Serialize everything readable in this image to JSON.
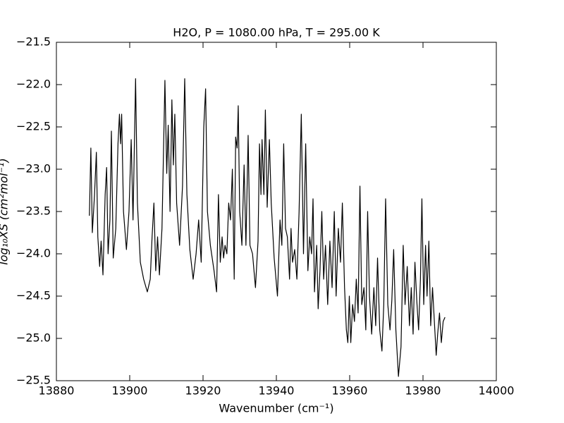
{
  "chart_data": {
    "type": "line",
    "title": "H2O, P = 1080.00 hPa, T = 295.00 K",
    "x_label": "Wavenumber (cm⁻¹)",
    "y_label": "log₁₀XS (cm²mol⁻¹)",
    "color": "#000000",
    "xlim": [
      13880,
      14000
    ],
    "xticks": [
      13880,
      13900,
      13920,
      13940,
      13960,
      13980,
      14000
    ],
    "ylim": [
      -25.5,
      -21.5
    ],
    "yticks": [
      {
        "value": -25.5,
        "label": "−25.5"
      },
      {
        "value": -25.0,
        "label": "−25.0"
      },
      {
        "value": -24.5,
        "label": "−24.5"
      },
      {
        "value": -24.0,
        "label": "−24.0"
      },
      {
        "value": -23.5,
        "label": "−23.5"
      },
      {
        "value": -23.0,
        "label": "−23.0"
      },
      {
        "value": -22.5,
        "label": "−22.5"
      },
      {
        "value": -22.0,
        "label": "−22.0"
      },
      {
        "value": -21.5,
        "label": "−21.5"
      }
    ],
    "x": [
      13889.0,
      13889.4,
      13889.8,
      13890.4,
      13890.9,
      13891.3,
      13891.8,
      13892.2,
      13892.7,
      13893.3,
      13893.7,
      13894.1,
      13894.6,
      13895.0,
      13895.5,
      13896.2,
      13896.8,
      13897.2,
      13897.5,
      13897.8,
      13898.3,
      13899.1,
      13899.8,
      13900.4,
      13900.9,
      13901.6,
      13902.1,
      13902.9,
      13903.8,
      13904.8,
      13905.6,
      13906.1,
      13906.6,
      13907.1,
      13907.6,
      13908.1,
      13908.8,
      13909.6,
      13910.1,
      13910.5,
      13911.0,
      13911.5,
      13911.9,
      13912.3,
      13912.8,
      13913.6,
      13914.4,
      13915.0,
      13915.6,
      13916.4,
      13917.3,
      13918.1,
      13918.8,
      13919.5,
      13920.2,
      13920.7,
      13921.2,
      13922.0,
      13923.0,
      13923.7,
      13924.2,
      13924.7,
      13925.2,
      13925.6,
      13926.0,
      13926.5,
      13927.0,
      13927.5,
      13928.0,
      13928.5,
      13928.9,
      13929.3,
      13929.6,
      13930.0,
      13930.6,
      13931.2,
      13931.7,
      13932.3,
      13932.8,
      13933.5,
      13934.3,
      13935.0,
      13935.4,
      13935.8,
      13936.1,
      13936.6,
      13937.0,
      13937.5,
      13938.1,
      13938.6,
      13939.4,
      13940.3,
      13941.0,
      13941.5,
      13942.0,
      13942.5,
      13943.0,
      13943.6,
      13944.0,
      13944.4,
      13945.0,
      13945.6,
      13946.2,
      13946.8,
      13947.4,
      13948.0,
      13948.6,
      13949.1,
      13949.6,
      13950.0,
      13950.4,
      13951.0,
      13951.4,
      13951.9,
      13952.4,
      13952.9,
      13953.4,
      13954.0,
      13954.6,
      13955.2,
      13955.8,
      13956.3,
      13956.9,
      13957.5,
      13958.0,
      13958.6,
      13959.1,
      13959.5,
      13959.9,
      13960.3,
      13960.8,
      13961.3,
      13961.8,
      13962.3,
      13962.8,
      13963.3,
      13963.9,
      13964.4,
      13964.9,
      13965.4,
      13966.0,
      13966.6,
      13967.1,
      13967.6,
      13968.2,
      13968.8,
      13969.3,
      13969.8,
      13970.4,
      13971.0,
      13971.5,
      13972.0,
      13972.6,
      13973.3,
      13974.0,
      13974.6,
      13975.1,
      13975.7,
      13976.3,
      13976.8,
      13977.3,
      13977.8,
      13978.3,
      13978.8,
      13979.3,
      13979.7,
      13980.2,
      13980.7,
      13981.1,
      13981.6,
      13982.1,
      13982.6,
      13983.1,
      13983.6,
      13984.0,
      13984.5,
      13985.0,
      13985.5,
      13986.0
    ],
    "values": [
      -23.55,
      -22.75,
      -23.75,
      -23.3,
      -22.8,
      -23.8,
      -24.15,
      -23.85,
      -24.25,
      -23.3,
      -22.98,
      -24.0,
      -23.6,
      -22.55,
      -24.05,
      -23.7,
      -22.7,
      -22.35,
      -22.7,
      -22.35,
      -23.5,
      -23.95,
      -23.5,
      -22.65,
      -23.6,
      -21.93,
      -23.4,
      -24.1,
      -24.3,
      -24.45,
      -24.3,
      -23.8,
      -23.4,
      -24.2,
      -23.8,
      -24.25,
      -23.7,
      -21.95,
      -23.05,
      -22.48,
      -23.5,
      -22.18,
      -22.95,
      -22.35,
      -23.4,
      -23.9,
      -23.2,
      -21.93,
      -23.3,
      -23.95,
      -24.3,
      -24.0,
      -23.6,
      -24.1,
      -22.5,
      -22.05,
      -23.5,
      -23.9,
      -24.2,
      -24.45,
      -23.3,
      -24.1,
      -23.8,
      -24.05,
      -23.9,
      -24.0,
      -23.4,
      -23.6,
      -23.0,
      -24.3,
      -22.62,
      -22.75,
      -22.25,
      -23.5,
      -23.9,
      -22.95,
      -23.9,
      -22.6,
      -23.9,
      -24.0,
      -24.4,
      -23.85,
      -22.7,
      -23.3,
      -22.65,
      -23.3,
      -22.3,
      -23.45,
      -22.65,
      -23.4,
      -24.05,
      -24.5,
      -23.6,
      -23.9,
      -22.7,
      -23.7,
      -23.8,
      -24.3,
      -23.7,
      -24.1,
      -23.95,
      -24.3,
      -23.5,
      -22.35,
      -24.0,
      -22.7,
      -24.2,
      -23.8,
      -24.0,
      -23.35,
      -24.45,
      -23.9,
      -24.65,
      -24.2,
      -23.5,
      -24.3,
      -23.9,
      -24.6,
      -23.85,
      -24.4,
      -23.5,
      -24.5,
      -23.7,
      -24.1,
      -23.4,
      -24.4,
      -24.9,
      -25.05,
      -24.5,
      -25.05,
      -24.6,
      -24.8,
      -24.3,
      -24.7,
      -23.2,
      -24.6,
      -24.4,
      -24.9,
      -23.5,
      -24.5,
      -24.95,
      -24.4,
      -24.85,
      -24.05,
      -24.9,
      -25.15,
      -24.6,
      -23.35,
      -24.6,
      -24.9,
      -24.55,
      -23.95,
      -24.9,
      -25.45,
      -25.1,
      -23.9,
      -24.6,
      -24.15,
      -24.85,
      -24.4,
      -24.95,
      -24.1,
      -24.55,
      -24.9,
      -24.3,
      -23.35,
      -24.6,
      -23.9,
      -24.5,
      -23.85,
      -24.85,
      -24.4,
      -24.8,
      -25.2,
      -24.95,
      -24.7,
      -25.05,
      -24.8,
      -24.75
    ]
  }
}
